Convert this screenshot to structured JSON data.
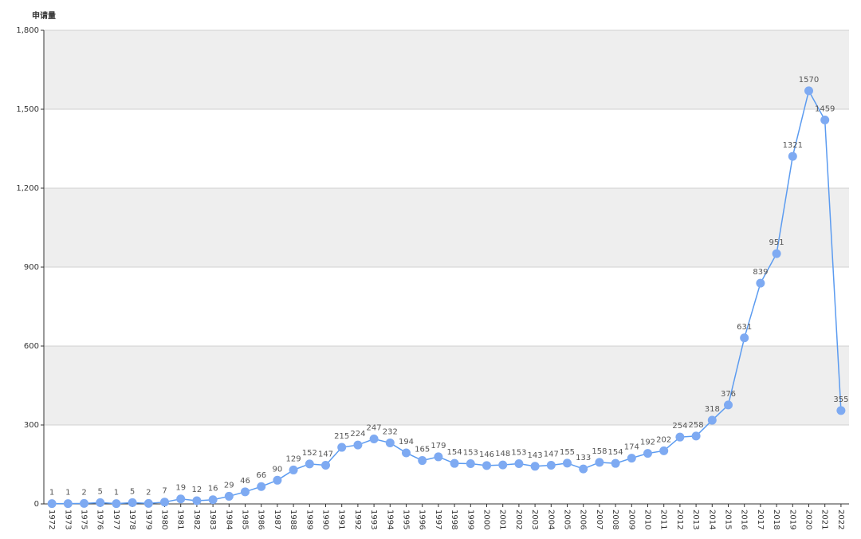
{
  "chart_data": {
    "type": "line",
    "y_label": "申请量",
    "categories": [
      "1972",
      "1973",
      "1975",
      "1976",
      "1977",
      "1978",
      "1979",
      "1980",
      "1981",
      "1982",
      "1983",
      "1984",
      "1985",
      "1986",
      "1987",
      "1988",
      "1989",
      "1990",
      "1991",
      "1992",
      "1993",
      "1994",
      "1995",
      "1996",
      "1997",
      "1998",
      "1999",
      "2000",
      "2001",
      "2002",
      "2003",
      "2004",
      "2005",
      "2006",
      "2007",
      "2008",
      "2009",
      "2010",
      "2011",
      "2012",
      "2013",
      "2014",
      "2015",
      "2016",
      "2017",
      "2018",
      "2019",
      "2020",
      "2021",
      "2022"
    ],
    "values": [
      1,
      1,
      2,
      5,
      1,
      5,
      2,
      7,
      19,
      12,
      16,
      29,
      46,
      66,
      90,
      129,
      152,
      147,
      215,
      224,
      247,
      232,
      194,
      165,
      179,
      154,
      153,
      146,
      148,
      153,
      143,
      147,
      155,
      133,
      158,
      154,
      174,
      192,
      202,
      254,
      258,
      318,
      376,
      631,
      839,
      951,
      1321,
      1570,
      1459,
      355
    ],
    "color": "#5b9bf0",
    "marker_color": "#7eaaf2",
    "ylim": [
      0,
      1800
    ],
    "yticks": [
      0,
      300,
      600,
      900,
      {
        "value": 1200,
        "label": "1,200"
      },
      {
        "value": 1500,
        "label": "1,500"
      },
      {
        "value": 1800,
        "label": "1,800"
      }
    ],
    "grid": true
  }
}
